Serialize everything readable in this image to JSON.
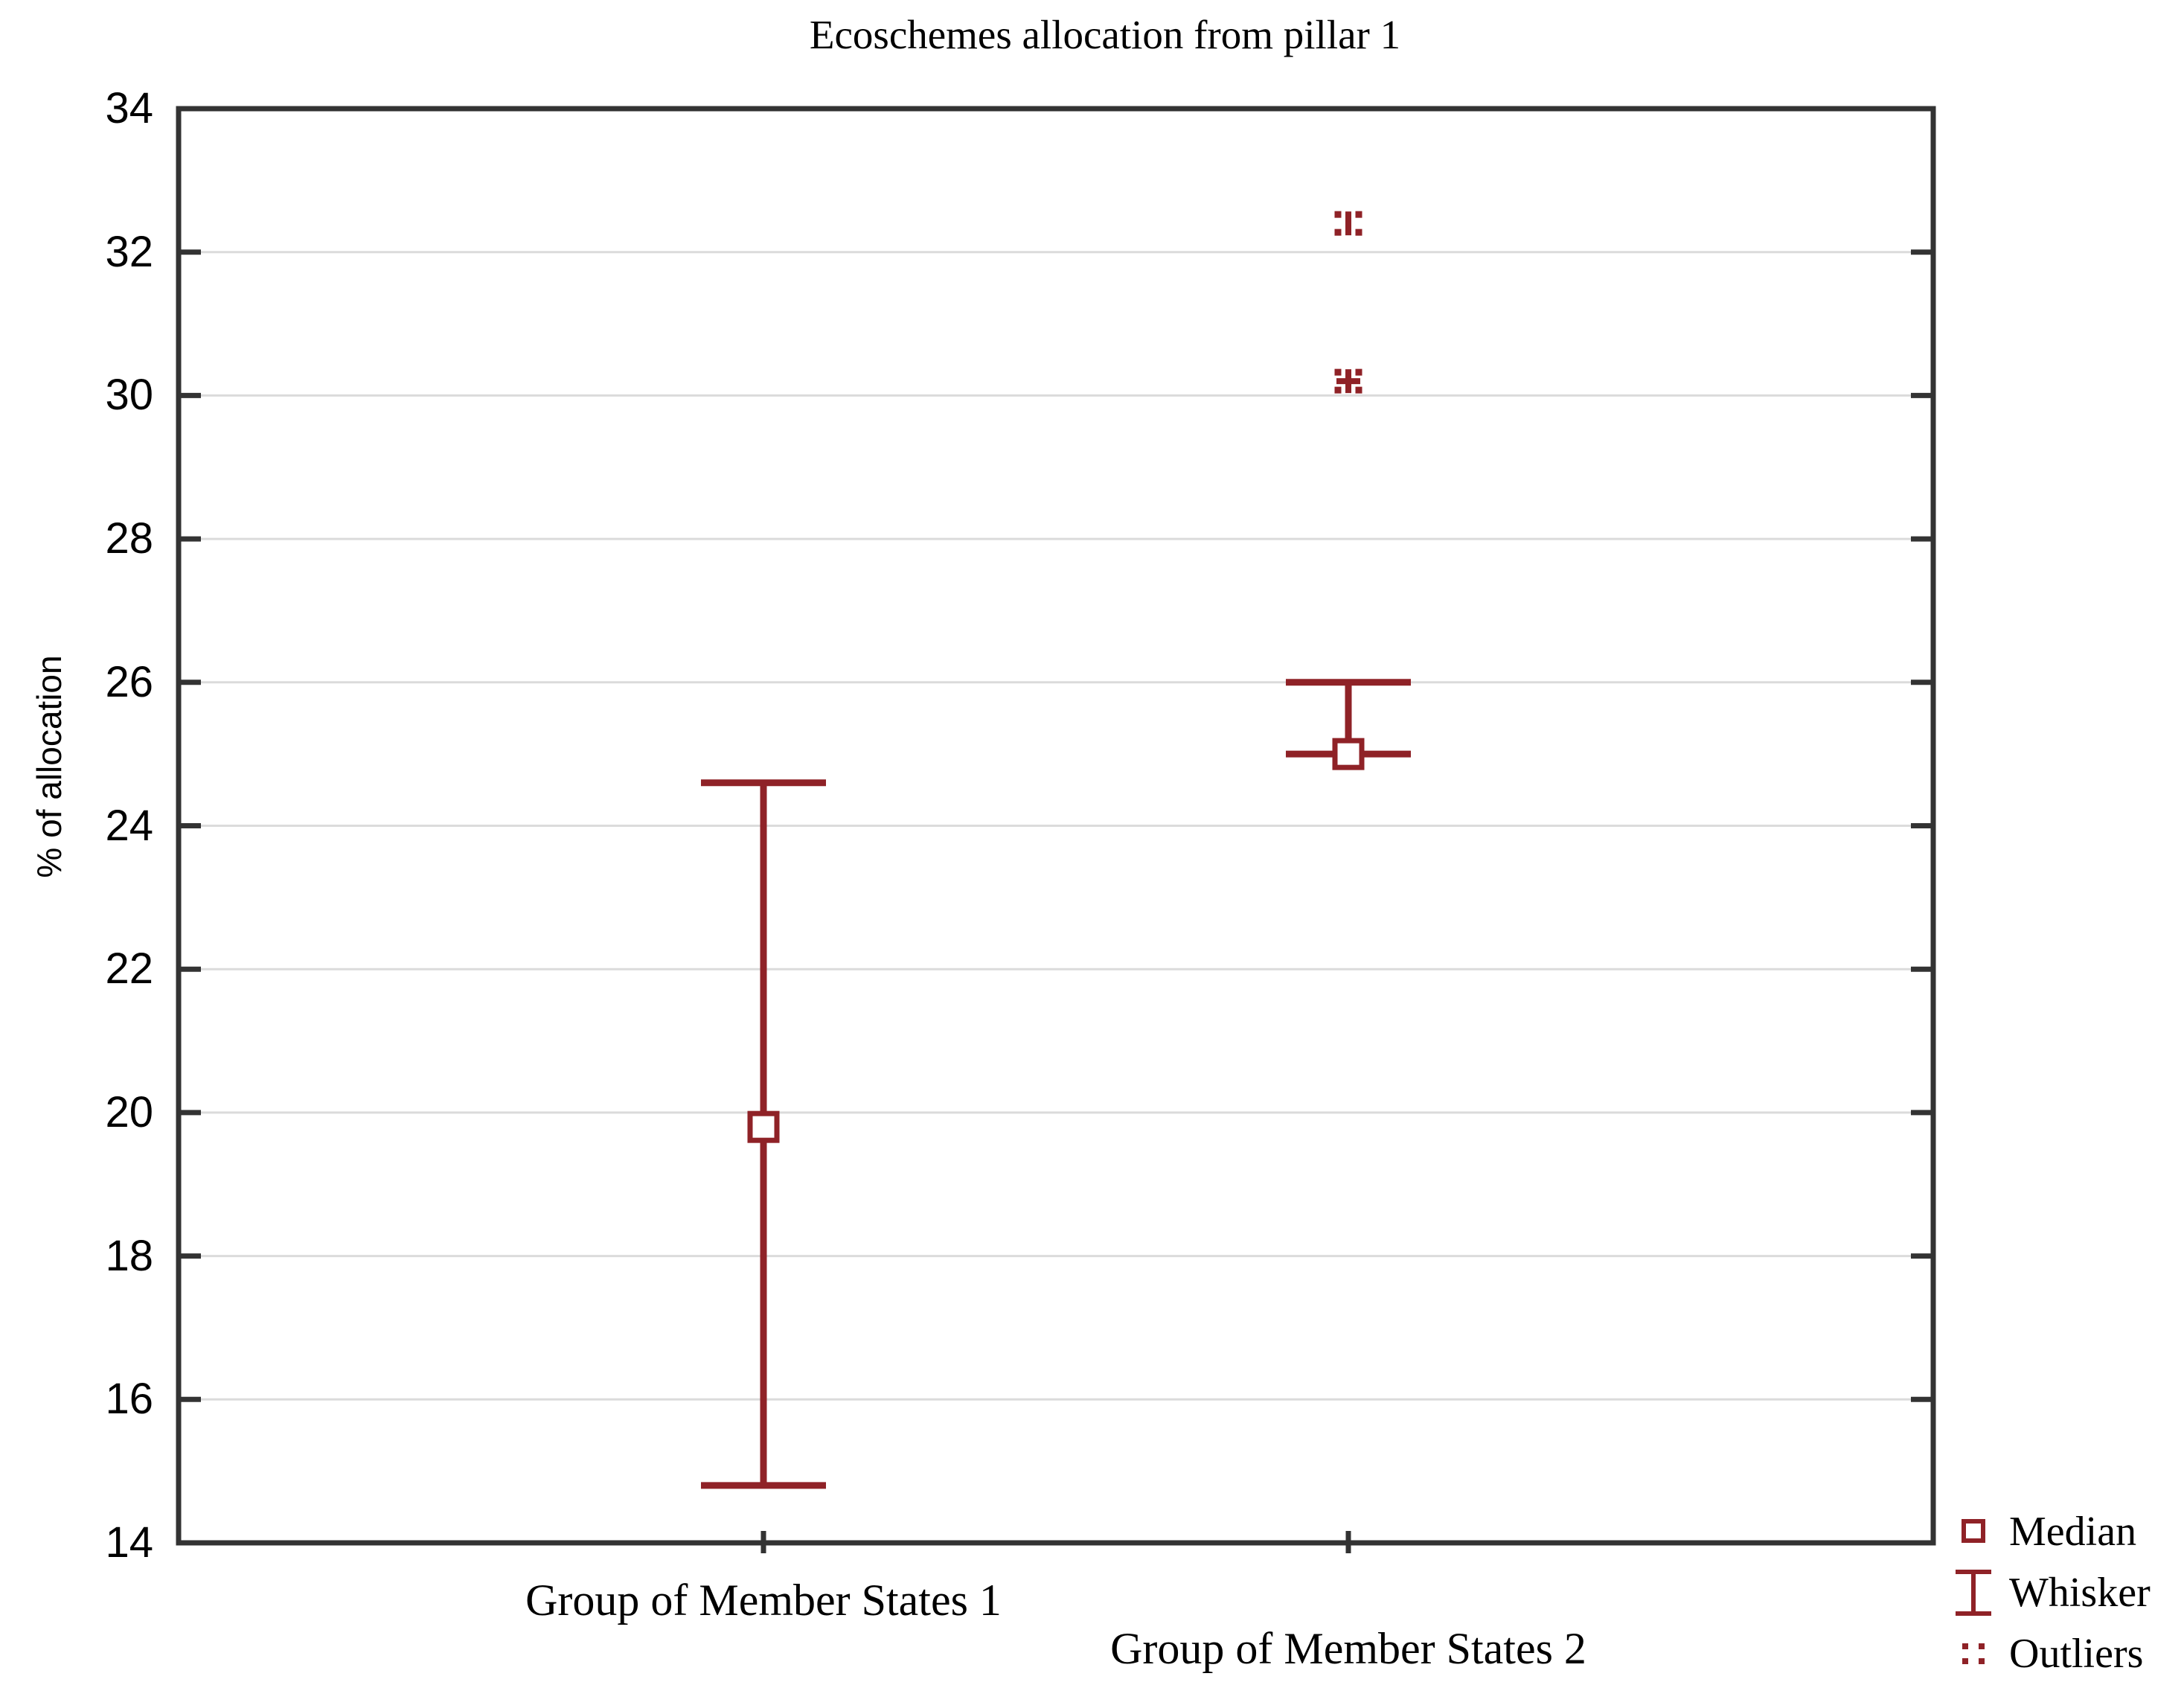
{
  "chart_data": {
    "type": "box-whisker",
    "title": "Ecoschemes allocation from pillar 1",
    "ylabel": "% of allocation",
    "xlabel": "",
    "ylim": [
      14,
      34
    ],
    "ytick_step": 2,
    "yticks": [
      14,
      16,
      18,
      20,
      22,
      24,
      26,
      28,
      30,
      32,
      34
    ],
    "grid": "horizontal",
    "categories": [
      "Group of Member States 1",
      "Group of Member States 2"
    ],
    "groups": [
      {
        "category": "Group of Member States 1",
        "median": 19.8,
        "whisker_low": 14.8,
        "whisker_high": 24.6,
        "outliers": []
      },
      {
        "category": "Group of Member States 2",
        "median": 25.0,
        "whisker_low": 25.0,
        "whisker_high": 26.0,
        "outliers": [
          {
            "value": 32.4,
            "marker": "bar-dots"
          },
          {
            "value": 30.2,
            "marker": "plus-dots"
          }
        ]
      }
    ],
    "legend": {
      "position": "bottom-right",
      "items": [
        {
          "label": "Median",
          "marker": "square"
        },
        {
          "label": "Whisker",
          "marker": "whisker"
        },
        {
          "label": "Outliers",
          "marker": "dots"
        }
      ]
    },
    "colors": {
      "series": "#8F2227",
      "frame": "#333333",
      "grid": "#DBDBDB",
      "text": "#000000",
      "marker_fill": "#FFFFFF"
    }
  }
}
